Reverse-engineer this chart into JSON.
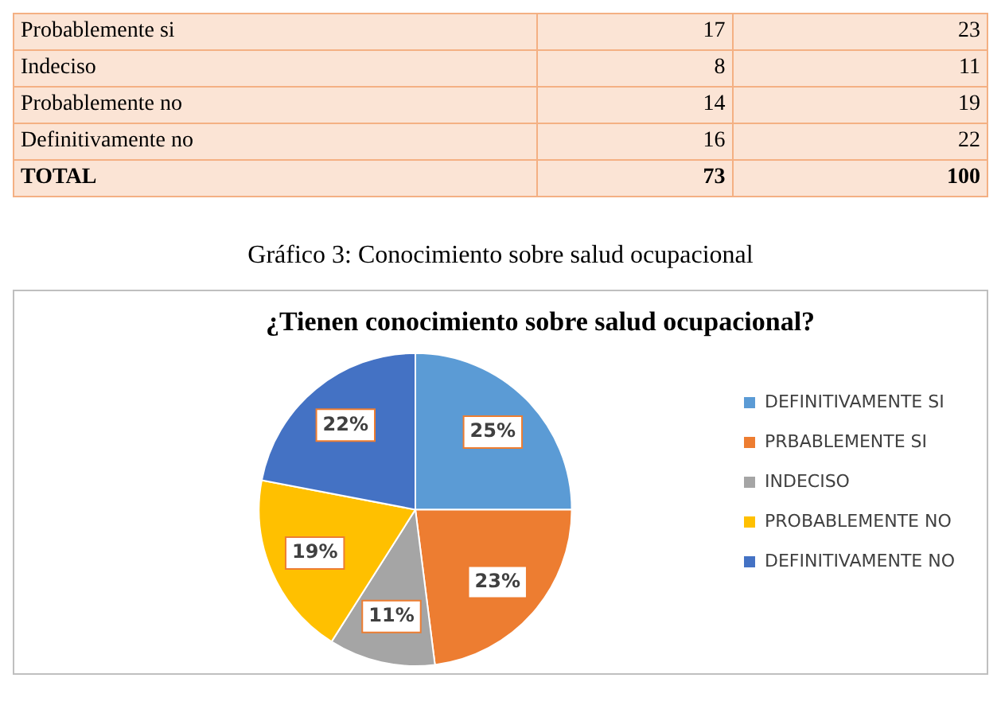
{
  "chart_data": {
    "type": "pie",
    "title": "¿Tienen conocimiento sobre salud ocupacional?",
    "categories": [
      "DEFINITIVAMENTE SI",
      "PRBABLEMENTE SI",
      "INDECISO",
      "PROBABLEMENTE NO",
      "DEFINITIVAMENTE NO"
    ],
    "values": [
      25,
      23,
      11,
      19,
      22
    ],
    "colors": [
      "#5b9bd5",
      "#ed7d31",
      "#a5a5a5",
      "#ffc000",
      "#4472c4"
    ],
    "value_labels": [
      "25%",
      "23%",
      "11%",
      "19%",
      "22%"
    ],
    "legend": "right",
    "annotations": [
      "Probablemente si",
      "17",
      "23",
      "Indeciso",
      "8",
      "11",
      "Probablemente no",
      "14",
      "19",
      "Definitivamente no",
      "16",
      "22",
      "TOTAL",
      "73",
      "100",
      "Gráfico 3: Conocimiento sobre salud ocupacional"
    ]
  }
}
